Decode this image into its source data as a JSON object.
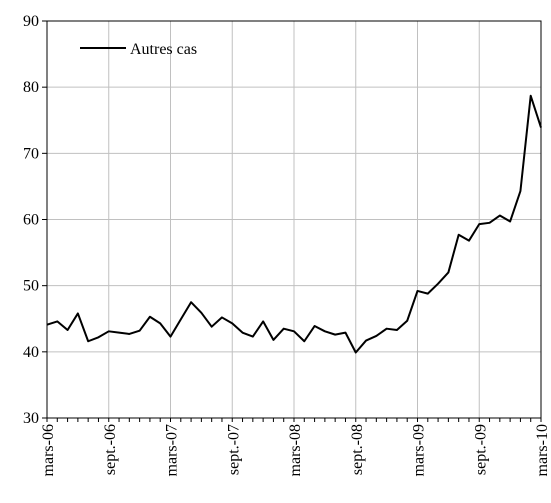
{
  "chart_data": {
    "type": "line",
    "title": "",
    "xlabel": "",
    "ylabel": "",
    "ylim": [
      30,
      90
    ],
    "yticks": [
      30,
      40,
      50,
      60,
      70,
      80,
      90
    ],
    "grid": true,
    "legend_position": "top-left",
    "xtick_labels": [
      "mars-06",
      "sept.-06",
      "mars-07",
      "sept.-07",
      "mars-08",
      "sept.-08",
      "mars-09",
      "sept.-09",
      "mars-10"
    ],
    "x": [
      "mars-06",
      "avr.-06",
      "mai-06",
      "juin-06",
      "juil.-06",
      "août-06",
      "sept.-06",
      "oct.-06",
      "nov.-06",
      "déc.-06",
      "janv.-07",
      "févr.-07",
      "mars-07",
      "avr.-07",
      "mai-07",
      "juin-07",
      "juil.-07",
      "août-07",
      "sept.-07",
      "oct.-07",
      "nov.-07",
      "déc.-07",
      "janv.-08",
      "févr.-08",
      "mars-08",
      "avr.-08",
      "mai-08",
      "juin-08",
      "juil.-08",
      "août-08",
      "sept.-08",
      "oct.-08",
      "nov.-08",
      "déc.-08",
      "janv.-09",
      "févr.-09",
      "mars-09",
      "avr.-09",
      "mai-09",
      "juin-09",
      "juil.-09",
      "août-09",
      "sept.-09",
      "oct.-09",
      "nov.-09",
      "déc.-09",
      "janv.-10",
      "févr.-10",
      "mars-10"
    ],
    "series": [
      {
        "name": "Autres cas",
        "color": "#000000",
        "values": [
          44.1,
          44.6,
          43.3,
          45.8,
          41.6,
          42.2,
          43.1,
          42.9,
          42.7,
          43.2,
          45.3,
          44.3,
          42.3,
          44.9,
          47.5,
          45.9,
          43.8,
          45.2,
          44.3,
          42.9,
          42.3,
          44.6,
          41.8,
          43.5,
          43.1,
          41.6,
          43.9,
          43.1,
          42.6,
          42.9,
          39.9,
          41.7,
          42.4,
          43.5,
          43.3,
          44.7,
          49.2,
          48.8,
          50.3,
          52.0,
          57.7,
          56.8,
          59.3,
          59.5,
          60.6,
          59.7,
          64.3,
          78.7,
          73.9
        ]
      }
    ]
  }
}
